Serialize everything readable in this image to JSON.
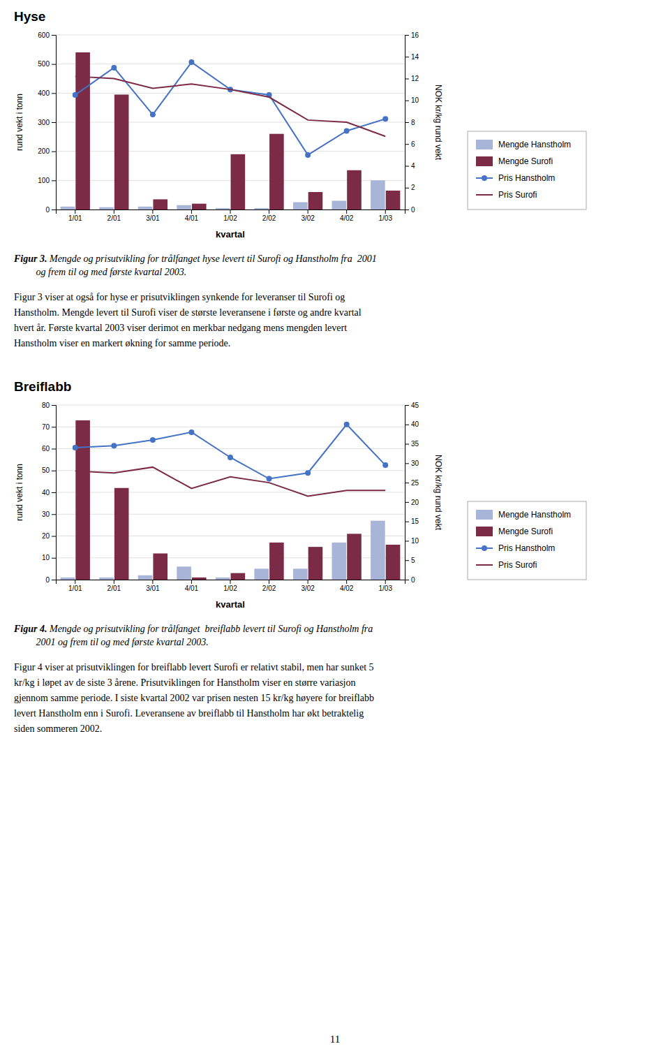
{
  "chart_data": [
    {
      "type": "bar",
      "title": "Hyse",
      "categories": [
        "1/01",
        "2/01",
        "3/01",
        "4/01",
        "1/02",
        "2/02",
        "3/02",
        "4/02",
        "1/03"
      ],
      "series": [
        {
          "name": "Mengde Hanstholm",
          "type": "bar",
          "color": "#a8b4d8",
          "values": [
            10,
            8,
            10,
            15,
            5,
            5,
            25,
            30,
            100
          ]
        },
        {
          "name": "Mengde Surofi",
          "type": "bar",
          "color": "#7b2b45",
          "values": [
            540,
            395,
            35,
            20,
            190,
            260,
            60,
            135,
            65
          ]
        },
        {
          "name": "Pris Hanstholm",
          "type": "line",
          "axis": "y2",
          "color": "#4472c4",
          "marker": "circle",
          "values": [
            10.5,
            13.0,
            8.7,
            13.5,
            11.0,
            10.5,
            5.0,
            7.2,
            8.3
          ]
        },
        {
          "name": "Pris Surofi",
          "type": "line",
          "axis": "y2",
          "color": "#7b2b45",
          "values": [
            12.2,
            12.0,
            11.1,
            11.5,
            11.0,
            10.3,
            8.2,
            8.0,
            6.7
          ]
        }
      ],
      "ylim": [
        0,
        600
      ],
      "yticks": [
        0,
        100,
        200,
        300,
        400,
        500,
        600
      ],
      "y2lim": [
        0,
        16
      ],
      "y2ticks": [
        0,
        2,
        4,
        6,
        8,
        10,
        12,
        14,
        16
      ],
      "x_label": "kvartal",
      "y_label": "rund vekt i tonn",
      "y2_label": "NOK kr/kg rund vekt",
      "grid": true,
      "legend": "right",
      "caption_label": "Figur 3.",
      "caption": " Mengde og prisutvikling for trålfanget hyse levert til Surofi og Hanstholm fra  2001\n         og frem til og med første kvartal 2003.",
      "text": [
        "Figur 3 viser at også for hyse er prisutviklingen synkende for leveranser til Surofi og",
        "Hanstholm. Mengde levert til Surofi viser de største leveransene i første og andre kvartal",
        "hvert år. Første kvartal 2003 viser derimot en merkbar nedgang mens mengden levert",
        "Hanstholm viser en markert økning for samme periode."
      ]
    },
    {
      "type": "bar",
      "title": "Breiflabb",
      "categories": [
        "1/01",
        "2/01",
        "3/01",
        "4/01",
        "1/02",
        "2/02",
        "3/02",
        "4/02",
        "1/03"
      ],
      "series": [
        {
          "name": "Mengde Hanstholm",
          "type": "bar",
          "color": "#a8b4d8",
          "values": [
            1,
            1,
            2,
            6,
            1,
            5,
            5,
            17,
            27
          ]
        },
        {
          "name": "Mengde Surofi",
          "type": "bar",
          "color": "#7b2b45",
          "values": [
            73,
            42,
            12,
            1,
            3,
            17,
            15,
            21,
            16
          ]
        },
        {
          "name": "Pris Hanstholm",
          "type": "line",
          "axis": "y2",
          "color": "#4472c4",
          "marker": "circle",
          "values": [
            34,
            34.5,
            36,
            38,
            31.5,
            26,
            27.5,
            40,
            29.5
          ]
        },
        {
          "name": "Pris Surofi",
          "type": "line",
          "axis": "y2",
          "color": "#7b2b45",
          "values": [
            28,
            27.5,
            29,
            23.5,
            26.5,
            25,
            21.5,
            23,
            23
          ]
        }
      ],
      "ylim": [
        0,
        80
      ],
      "yticks": [
        0,
        10,
        20,
        30,
        40,
        50,
        60,
        70,
        80
      ],
      "y2lim": [
        0,
        45
      ],
      "y2ticks": [
        0,
        5,
        10,
        15,
        20,
        25,
        30,
        35,
        40,
        45
      ],
      "x_label": "kvartal",
      "y_label": "rund vekt i tonn",
      "y2_label": "NOK kr/kg rund vekt",
      "grid": true,
      "legend": "right",
      "caption_label": "Figur 4.",
      "caption": " Mengde og prisutvikling for trålfanget  breiflabb levert til Surofi og Hanstholm fra\n         2001 og frem til og med første kvartal 2003.",
      "text": [
        "Figur 4 viser at prisutviklingen for breiflabb levert Surofi er relativt stabil, men har sunket 5",
        "kr/kg i løpet av de siste 3 årene. Prisutviklingen for Hanstholm viser en større variasjon",
        "gjennom samme periode. I siste kvartal 2002 var prisen nesten 15 kr/kg høyere for breiflabb",
        "levert Hanstholm enn i Surofi. Leveransene av breiflabb til Hanstholm har økt betraktelig",
        "siden sommeren 2002."
      ]
    }
  ],
  "page_number": "11"
}
